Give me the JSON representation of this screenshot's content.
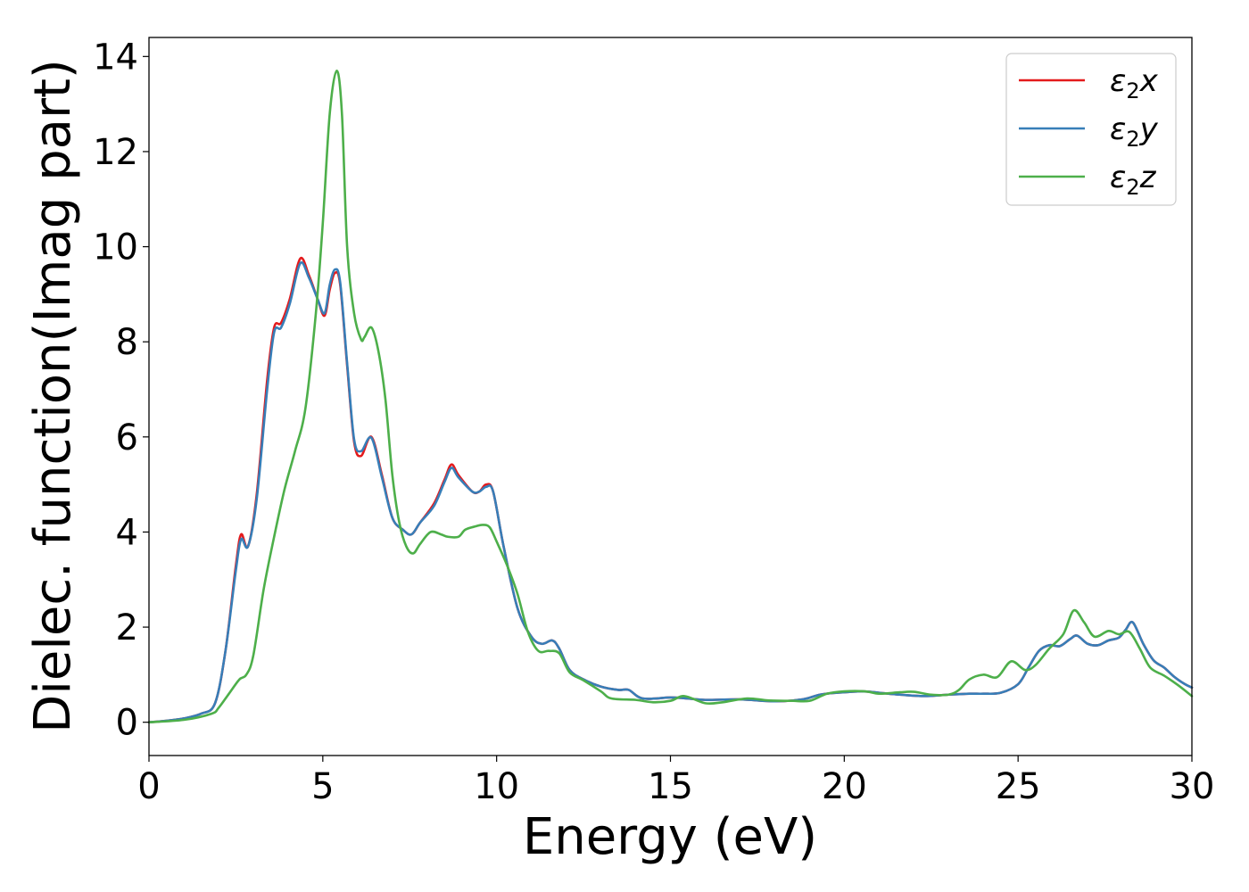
{
  "chart_data": {
    "type": "line",
    "title": "",
    "xlabel": "Energy (eV)",
    "ylabel": "Dielec. function(Imag part)",
    "xlim": [
      0,
      30
    ],
    "ylim": [
      -0.7,
      14.4
    ],
    "xticks": [
      0,
      5,
      10,
      15,
      20,
      25,
      30
    ],
    "yticks": [
      0,
      2,
      4,
      6,
      8,
      10,
      12,
      14
    ],
    "grid": false,
    "legend_position": "top-right",
    "series": [
      {
        "name": "ε2x",
        "legend_base": "ε",
        "legend_sub": "2",
        "legend_suffix": "x",
        "color": "#e41a1c",
        "points": [
          [
            0,
            0
          ],
          [
            0.5,
            0.03
          ],
          [
            1,
            0.08
          ],
          [
            1.5,
            0.18
          ],
          [
            1.9,
            0.4
          ],
          [
            2.2,
            1.5
          ],
          [
            2.5,
            3.3
          ],
          [
            2.65,
            3.95
          ],
          [
            2.85,
            3.7
          ],
          [
            3.1,
            4.8
          ],
          [
            3.4,
            7.2
          ],
          [
            3.6,
            8.3
          ],
          [
            3.8,
            8.4
          ],
          [
            4.05,
            8.9
          ],
          [
            4.35,
            9.75
          ],
          [
            4.6,
            9.4
          ],
          [
            4.85,
            8.9
          ],
          [
            5.05,
            8.55
          ],
          [
            5.2,
            9.1
          ],
          [
            5.35,
            9.45
          ],
          [
            5.5,
            9.2
          ],
          [
            5.7,
            7.5
          ],
          [
            5.9,
            5.9
          ],
          [
            6.1,
            5.6
          ],
          [
            6.4,
            6.0
          ],
          [
            6.7,
            5.2
          ],
          [
            7.0,
            4.3
          ],
          [
            7.3,
            4.05
          ],
          [
            7.55,
            3.95
          ],
          [
            7.8,
            4.2
          ],
          [
            8.2,
            4.6
          ],
          [
            8.5,
            5.1
          ],
          [
            8.7,
            5.42
          ],
          [
            8.9,
            5.2
          ],
          [
            9.3,
            4.85
          ],
          [
            9.5,
            4.85
          ],
          [
            9.7,
            5.0
          ],
          [
            9.9,
            4.85
          ],
          [
            10.2,
            3.7
          ],
          [
            10.6,
            2.4
          ],
          [
            11.0,
            1.8
          ],
          [
            11.3,
            1.65
          ],
          [
            11.6,
            1.72
          ],
          [
            11.8,
            1.55
          ],
          [
            12.1,
            1.1
          ],
          [
            12.5,
            0.9
          ],
          [
            13.0,
            0.75
          ],
          [
            13.5,
            0.68
          ],
          [
            13.8,
            0.68
          ],
          [
            14.2,
            0.5
          ],
          [
            15.0,
            0.52
          ],
          [
            15.5,
            0.5
          ],
          [
            16.0,
            0.47
          ],
          [
            17.0,
            0.48
          ],
          [
            18.0,
            0.44
          ],
          [
            18.8,
            0.48
          ],
          [
            19.3,
            0.58
          ],
          [
            19.8,
            0.62
          ],
          [
            20.5,
            0.65
          ],
          [
            21.0,
            0.62
          ],
          [
            21.6,
            0.58
          ],
          [
            22.3,
            0.55
          ],
          [
            23.0,
            0.58
          ],
          [
            23.6,
            0.6
          ],
          [
            24.0,
            0.6
          ],
          [
            24.5,
            0.62
          ],
          [
            25.0,
            0.8
          ],
          [
            25.3,
            1.15
          ],
          [
            25.6,
            1.5
          ],
          [
            25.9,
            1.62
          ],
          [
            26.2,
            1.6
          ],
          [
            26.5,
            1.75
          ],
          [
            26.7,
            1.82
          ],
          [
            27.0,
            1.65
          ],
          [
            27.3,
            1.62
          ],
          [
            27.6,
            1.72
          ],
          [
            27.9,
            1.78
          ],
          [
            28.1,
            1.95
          ],
          [
            28.3,
            2.1
          ],
          [
            28.6,
            1.65
          ],
          [
            28.9,
            1.3
          ],
          [
            29.2,
            1.15
          ],
          [
            29.5,
            0.95
          ],
          [
            29.8,
            0.8
          ],
          [
            30,
            0.73
          ]
        ]
      },
      {
        "name": "ε2y",
        "legend_base": "ε",
        "legend_sub": "2",
        "legend_suffix": "y",
        "color": "#377eb8",
        "points": [
          [
            0,
            0
          ],
          [
            0.5,
            0.03
          ],
          [
            1,
            0.08
          ],
          [
            1.5,
            0.18
          ],
          [
            1.9,
            0.4
          ],
          [
            2.2,
            1.5
          ],
          [
            2.5,
            3.2
          ],
          [
            2.65,
            3.85
          ],
          [
            2.85,
            3.7
          ],
          [
            3.1,
            4.7
          ],
          [
            3.4,
            7.0
          ],
          [
            3.6,
            8.2
          ],
          [
            3.8,
            8.3
          ],
          [
            4.05,
            8.8
          ],
          [
            4.35,
            9.65
          ],
          [
            4.6,
            9.35
          ],
          [
            4.85,
            8.9
          ],
          [
            5.05,
            8.6
          ],
          [
            5.2,
            9.2
          ],
          [
            5.35,
            9.52
          ],
          [
            5.5,
            9.25
          ],
          [
            5.7,
            7.55
          ],
          [
            5.9,
            5.95
          ],
          [
            6.1,
            5.7
          ],
          [
            6.4,
            5.98
          ],
          [
            6.7,
            5.15
          ],
          [
            7.0,
            4.3
          ],
          [
            7.3,
            4.05
          ],
          [
            7.55,
            3.95
          ],
          [
            7.8,
            4.2
          ],
          [
            8.2,
            4.55
          ],
          [
            8.5,
            5.05
          ],
          [
            8.7,
            5.35
          ],
          [
            8.9,
            5.15
          ],
          [
            9.3,
            4.85
          ],
          [
            9.5,
            4.85
          ],
          [
            9.7,
            4.95
          ],
          [
            9.9,
            4.85
          ],
          [
            10.2,
            3.7
          ],
          [
            10.6,
            2.4
          ],
          [
            11.0,
            1.8
          ],
          [
            11.3,
            1.65
          ],
          [
            11.6,
            1.72
          ],
          [
            11.8,
            1.55
          ],
          [
            12.1,
            1.1
          ],
          [
            12.5,
            0.9
          ],
          [
            13.0,
            0.75
          ],
          [
            13.5,
            0.68
          ],
          [
            13.8,
            0.68
          ],
          [
            14.2,
            0.5
          ],
          [
            15.0,
            0.52
          ],
          [
            15.5,
            0.5
          ],
          [
            16.0,
            0.47
          ],
          [
            17.0,
            0.48
          ],
          [
            18.0,
            0.44
          ],
          [
            18.8,
            0.48
          ],
          [
            19.3,
            0.58
          ],
          [
            19.8,
            0.62
          ],
          [
            20.5,
            0.65
          ],
          [
            21.0,
            0.62
          ],
          [
            21.6,
            0.58
          ],
          [
            22.3,
            0.55
          ],
          [
            23.0,
            0.58
          ],
          [
            23.6,
            0.6
          ],
          [
            24.0,
            0.6
          ],
          [
            24.5,
            0.62
          ],
          [
            25.0,
            0.8
          ],
          [
            25.3,
            1.15
          ],
          [
            25.6,
            1.5
          ],
          [
            25.9,
            1.62
          ],
          [
            26.2,
            1.6
          ],
          [
            26.5,
            1.75
          ],
          [
            26.7,
            1.82
          ],
          [
            27.0,
            1.65
          ],
          [
            27.3,
            1.62
          ],
          [
            27.6,
            1.72
          ],
          [
            27.9,
            1.78
          ],
          [
            28.1,
            1.95
          ],
          [
            28.3,
            2.1
          ],
          [
            28.6,
            1.65
          ],
          [
            28.9,
            1.3
          ],
          [
            29.2,
            1.15
          ],
          [
            29.5,
            0.95
          ],
          [
            29.8,
            0.8
          ],
          [
            30,
            0.73
          ]
        ]
      },
      {
        "name": "ε2z",
        "legend_base": "ε",
        "legend_sub": "2",
        "legend_suffix": "z",
        "color": "#4daf4a",
        "points": [
          [
            0,
            0
          ],
          [
            1,
            0.05
          ],
          [
            1.8,
            0.18
          ],
          [
            2.0,
            0.3
          ],
          [
            2.3,
            0.6
          ],
          [
            2.6,
            0.9
          ],
          [
            2.8,
            1.0
          ],
          [
            3.0,
            1.4
          ],
          [
            3.3,
            2.8
          ],
          [
            3.6,
            3.9
          ],
          [
            3.9,
            4.9
          ],
          [
            4.2,
            5.7
          ],
          [
            4.5,
            6.6
          ],
          [
            4.8,
            8.6
          ],
          [
            5.0,
            10.5
          ],
          [
            5.2,
            12.8
          ],
          [
            5.4,
            13.7
          ],
          [
            5.55,
            12.8
          ],
          [
            5.7,
            10.0
          ],
          [
            5.9,
            8.6
          ],
          [
            6.1,
            8.05
          ],
          [
            6.2,
            8.1
          ],
          [
            6.4,
            8.3
          ],
          [
            6.6,
            7.8
          ],
          [
            6.8,
            6.8
          ],
          [
            7.0,
            5.2
          ],
          [
            7.2,
            4.2
          ],
          [
            7.4,
            3.7
          ],
          [
            7.6,
            3.55
          ],
          [
            7.8,
            3.75
          ],
          [
            8.1,
            4.0
          ],
          [
            8.4,
            3.95
          ],
          [
            8.6,
            3.9
          ],
          [
            8.9,
            3.9
          ],
          [
            9.1,
            4.05
          ],
          [
            9.4,
            4.12
          ],
          [
            9.6,
            4.15
          ],
          [
            9.8,
            4.1
          ],
          [
            10.0,
            3.8
          ],
          [
            10.3,
            3.3
          ],
          [
            10.6,
            2.7
          ],
          [
            10.9,
            1.9
          ],
          [
            11.2,
            1.5
          ],
          [
            11.5,
            1.5
          ],
          [
            11.8,
            1.45
          ],
          [
            12.1,
            1.05
          ],
          [
            12.5,
            0.88
          ],
          [
            13.0,
            0.65
          ],
          [
            13.3,
            0.5
          ],
          [
            14.0,
            0.47
          ],
          [
            14.5,
            0.42
          ],
          [
            15.0,
            0.45
          ],
          [
            15.4,
            0.55
          ],
          [
            16.0,
            0.4
          ],
          [
            16.5,
            0.42
          ],
          [
            17.2,
            0.5
          ],
          [
            17.8,
            0.46
          ],
          [
            18.5,
            0.45
          ],
          [
            19.0,
            0.45
          ],
          [
            19.5,
            0.6
          ],
          [
            20.0,
            0.65
          ],
          [
            20.6,
            0.65
          ],
          [
            21.0,
            0.6
          ],
          [
            21.6,
            0.63
          ],
          [
            22.0,
            0.64
          ],
          [
            22.5,
            0.58
          ],
          [
            23.0,
            0.58
          ],
          [
            23.3,
            0.68
          ],
          [
            23.6,
            0.9
          ],
          [
            24.0,
            1.0
          ],
          [
            24.4,
            0.95
          ],
          [
            24.8,
            1.28
          ],
          [
            25.2,
            1.1
          ],
          [
            25.5,
            1.2
          ],
          [
            25.9,
            1.55
          ],
          [
            26.3,
            1.85
          ],
          [
            26.6,
            2.35
          ],
          [
            26.9,
            2.1
          ],
          [
            27.2,
            1.8
          ],
          [
            27.6,
            1.92
          ],
          [
            27.9,
            1.85
          ],
          [
            28.2,
            1.9
          ],
          [
            28.5,
            1.55
          ],
          [
            28.8,
            1.15
          ],
          [
            29.2,
            0.98
          ],
          [
            29.6,
            0.78
          ],
          [
            30,
            0.55
          ]
        ]
      }
    ]
  }
}
